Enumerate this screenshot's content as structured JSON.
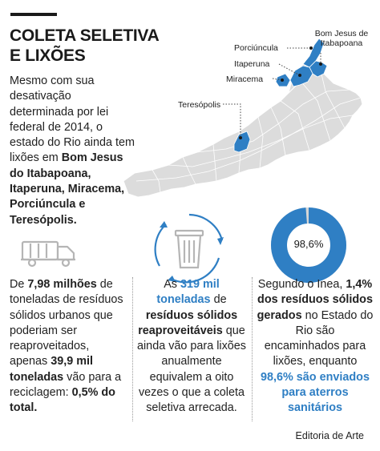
{
  "header": {
    "title_line1": "COLETA SELETIVA",
    "title_line2": "E LIXÕES"
  },
  "intro": {
    "part1": "Mesmo com sua desativação determinada por lei federal de 2014, o estado do Rio ainda tem lixões em ",
    "cities": "Bom Jesus do Itabapoana, Itaperuna, Miracema, Porciúncula e Teresópolis."
  },
  "map": {
    "labels": {
      "bom_jesus": "Bom Jesus de\nItabapoana",
      "porciuncula": "Porciúncula",
      "itaperuna": "Itaperuna",
      "miracema": "Miracema",
      "teresopolis": "Teresópolis"
    },
    "colors": {
      "highlight": "#2f7fc4",
      "base": "#dcdcdc",
      "border": "#ffffff"
    }
  },
  "columns": {
    "left": {
      "icon": "garbage-truck-icon",
      "t1": "De ",
      "b1": "7,98 milhões",
      "t2": " de toneladas de resíduos sólidos urbanos que poderiam ser reaproveitados, apenas ",
      "b2": "39,9 mil toneladas",
      "t3": " vão para a reciclagem: ",
      "b3": "0,5% do total."
    },
    "middle": {
      "icon": "recycling-bin-icon",
      "t1": "As ",
      "hl1": "319 mil toneladas",
      "t2": " de ",
      "b1": "resíduos sólidos reaproveitáveis",
      "t3": " que ainda vão para lixões anualmente equivalem a oito vezes o que a coleta seletiva arrecada."
    },
    "right": {
      "donut_label": "98,6%",
      "donut_value": 98.6,
      "t1": "Segundo o Inea, ",
      "b1": "1,4% dos resíduos sólidos gerados",
      "t2": " no Estado do Rio são encaminhados para lixões, enquanto ",
      "hl1": "98,6% são enviados para aterros sanitários"
    }
  },
  "footer": {
    "credit": "Editoria de Arte"
  },
  "theme": {
    "accent": "#2f7fc4",
    "text": "#1a1a1a",
    "icon_grey": "#b5b5b5"
  }
}
